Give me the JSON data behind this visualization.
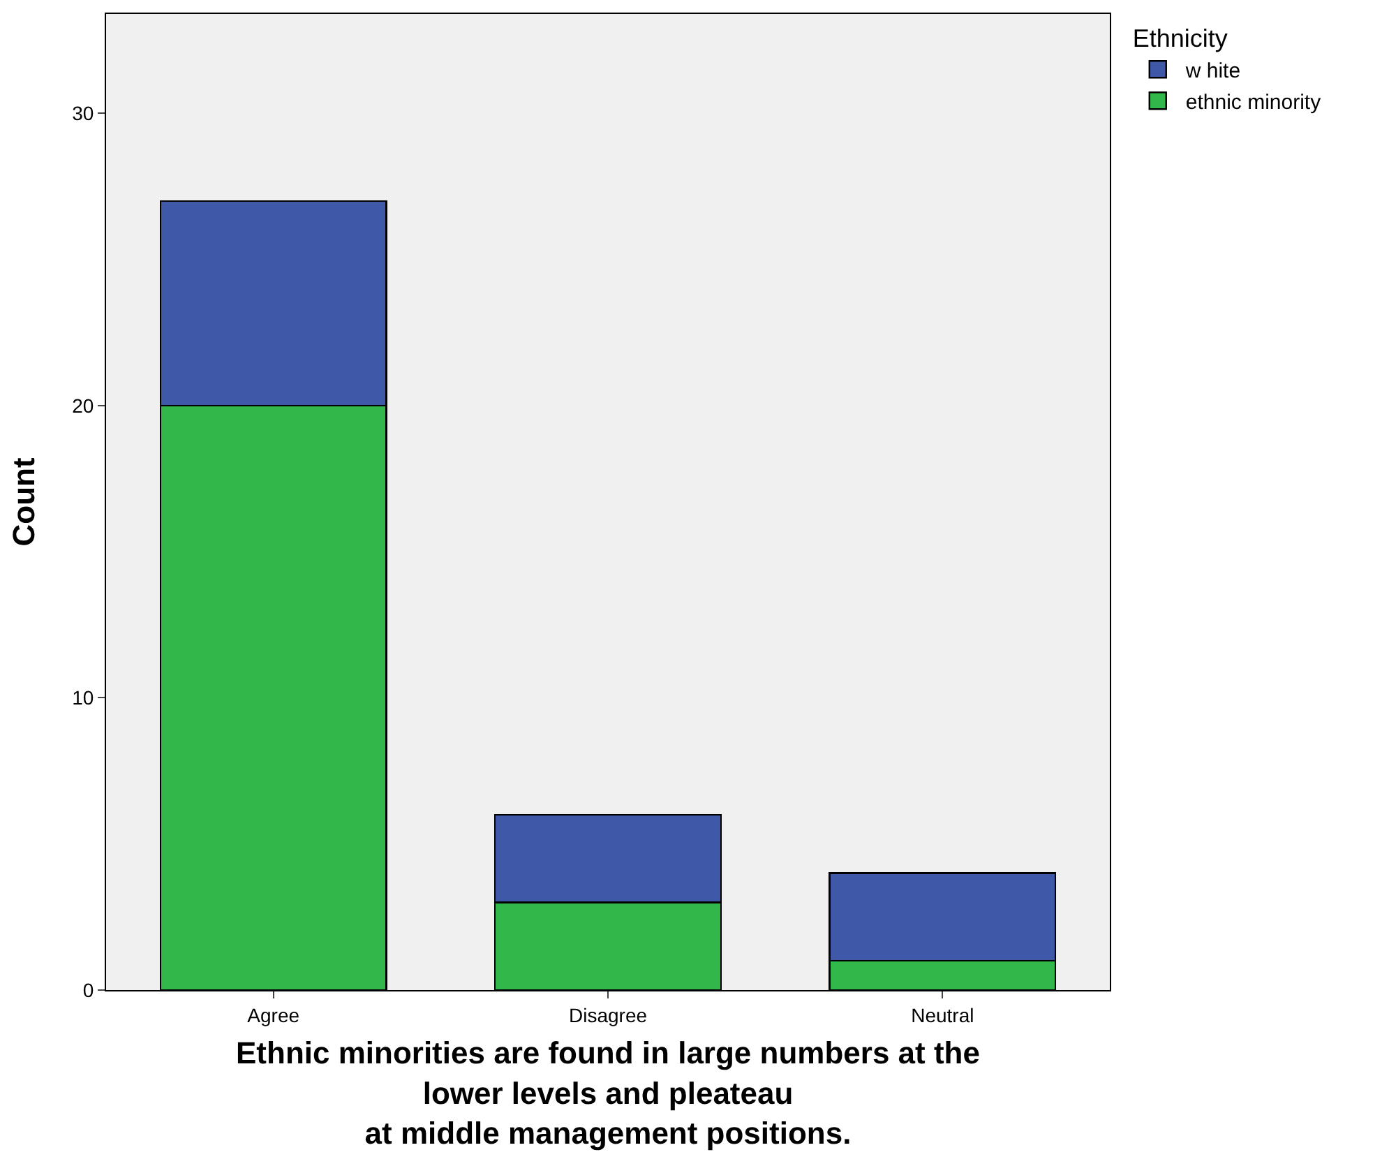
{
  "chart_data": {
    "type": "bar",
    "stacked": true,
    "xlabel": "Ethnic minorities are found in large numbers at the lower levels and pleateau at middle management positions.",
    "ylabel": "Count",
    "legend_title": "Ethnicity",
    "legend": "top right",
    "grid": false,
    "categories": [
      "Agree",
      "Disagree",
      "Neutral"
    ],
    "ylim": [
      0,
      33.4
    ],
    "yticks": [
      0,
      10,
      20,
      30
    ],
    "series": [
      {
        "name": "ethnic minority",
        "color": "#32b84a",
        "values": [
          20,
          3,
          1
        ]
      },
      {
        "name": "w hite",
        "color": "#3f58a8",
        "values": [
          7,
          3,
          3
        ]
      }
    ]
  }
}
